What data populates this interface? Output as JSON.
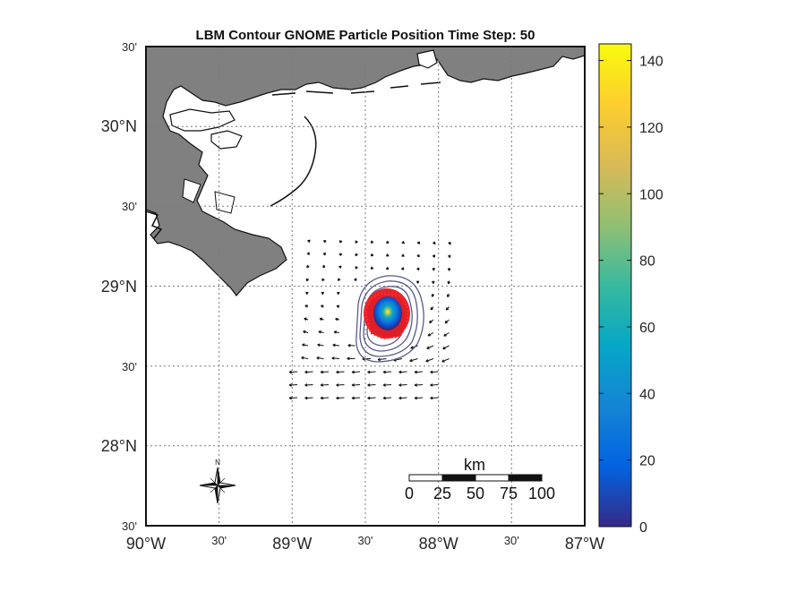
{
  "title": "LBM Contour GNOME Particle Position Time Step: 50",
  "map": {
    "lon_range": [
      -90,
      -87
    ],
    "lat_range": [
      27.5,
      30.5
    ],
    "x_ticks": [
      {
        "lon": -90,
        "label": "90°W",
        "size": "big"
      },
      {
        "lon": -89.5,
        "label": "30'",
        "size": "small"
      },
      {
        "lon": -89,
        "label": "89°W",
        "size": "big"
      },
      {
        "lon": -88.5,
        "label": "30'",
        "size": "small"
      },
      {
        "lon": -88,
        "label": "88°W",
        "size": "big"
      },
      {
        "lon": -87.5,
        "label": "30'",
        "size": "small"
      },
      {
        "lon": -87,
        "label": "87°W",
        "size": "big"
      }
    ],
    "y_ticks": [
      {
        "lat": 30.5,
        "label": "30'",
        "size": "small"
      },
      {
        "lat": 30,
        "label": "30°N",
        "size": "big"
      },
      {
        "lat": 29.5,
        "label": "30'",
        "size": "small"
      },
      {
        "lat": 29,
        "label": "29°N",
        "size": "big"
      },
      {
        "lat": 28.5,
        "label": "30'",
        "size": "small"
      },
      {
        "lat": 28,
        "label": "28°N",
        "size": "big"
      },
      {
        "lat": 27.5,
        "label": "30'",
        "size": "small"
      }
    ],
    "grid": "dotted",
    "land_color": "#808080",
    "ocean_color": "#ffffff"
  },
  "spill": {
    "center": {
      "lon": -88.16,
      "lat": 28.86
    },
    "peak_value": 145
  },
  "colorbar": {
    "min": 0,
    "max": 145,
    "ticks": [
      "0",
      "20",
      "40",
      "60",
      "80",
      "100",
      "120",
      "140"
    ],
    "tick_values": [
      0,
      20,
      40,
      60,
      80,
      100,
      120,
      140
    ],
    "colormap": "parula",
    "colors": [
      "#352a87",
      "#0363e1",
      "#1485d4",
      "#06a7c6",
      "#38b99e",
      "#92bf73",
      "#d9ba56",
      "#fcce2e",
      "#f9fb0e"
    ]
  },
  "scale_bar": {
    "unit_label": "km",
    "tick_labels": [
      "0",
      "25",
      "50",
      "75",
      "100"
    ]
  },
  "north_arrow": {
    "label": "N"
  }
}
